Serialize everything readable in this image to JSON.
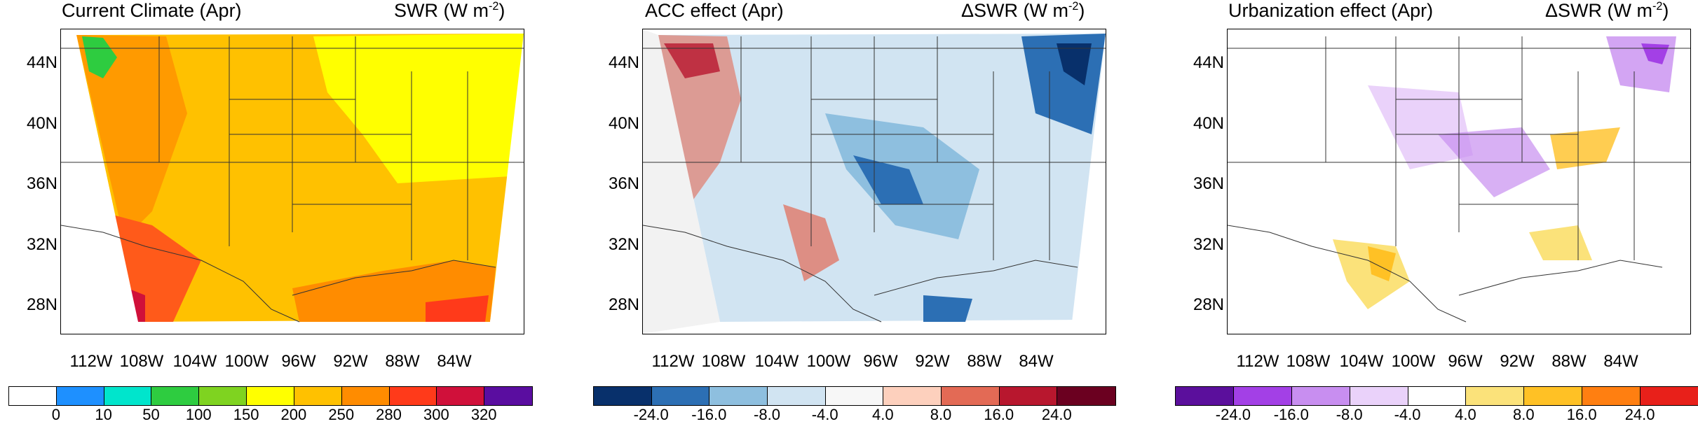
{
  "panels": [
    {
      "title_left": "Current Climate (Apr)",
      "title_right": "SWR (W m",
      "title_right_sup": "-2",
      "title_right_end": ")",
      "lat_labels": [
        "44N",
        "40N",
        "36N",
        "32N",
        "28N"
      ],
      "lon_labels": [
        "112W",
        "108W",
        "104W",
        "100W",
        "96W",
        "92W",
        "88W",
        "84W"
      ],
      "colorbar": {
        "colors": [
          "#ffffff",
          "#1e90ff",
          "#00e5cc",
          "#2ecc40",
          "#7fd320",
          "#ffff00",
          "#ffc100",
          "#ff8c00",
          "#ff3a1a",
          "#d0103a",
          "#5a0da0"
        ],
        "labels": [
          "0",
          "10",
          "50",
          "100",
          "150",
          "200",
          "250",
          "280",
          "300",
          "320"
        ]
      }
    },
    {
      "title_left": "ACC effect (Apr)",
      "title_right": "ΔSWR (W m",
      "title_right_sup": "-2",
      "title_right_end": ")",
      "lat_labels": [
        "44N",
        "40N",
        "36N",
        "32N",
        "28N"
      ],
      "lon_labels": [
        "112W",
        "108W",
        "104W",
        "100W",
        "96W",
        "92W",
        "88W",
        "84W"
      ],
      "colorbar": {
        "colors": [
          "#08306b",
          "#2c6fb4",
          "#8ebfdf",
          "#d1e4f2",
          "#f7f7f7",
          "#fdd0bd",
          "#e36a55",
          "#b8172e",
          "#6b0020"
        ],
        "labels": [
          "-24.0",
          "-16.0",
          "-8.0",
          "-4.0",
          "4.0",
          "8.0",
          "16.0",
          "24.0"
        ]
      }
    },
    {
      "title_left": "Urbanization effect (Apr)",
      "title_right": "ΔSWR (W m",
      "title_right_sup": "-2",
      "title_right_end": ")",
      "lat_labels": [
        "44N",
        "40N",
        "36N",
        "32N",
        "28N"
      ],
      "lon_labels": [
        "112W",
        "108W",
        "104W",
        "100W",
        "96W",
        "92W",
        "88W",
        "84W"
      ],
      "colorbar": {
        "colors": [
          "#5b0f9c",
          "#a340e6",
          "#c88ef0",
          "#ead2fa",
          "#ffffff",
          "#fbe27a",
          "#ffc125",
          "#ff7f11",
          "#e8201a"
        ],
        "labels": [
          "-24.0",
          "-16.0",
          "-8.0",
          "-4.0",
          "4.0",
          "8.0",
          "16.0",
          "24.0"
        ]
      }
    }
  ]
}
